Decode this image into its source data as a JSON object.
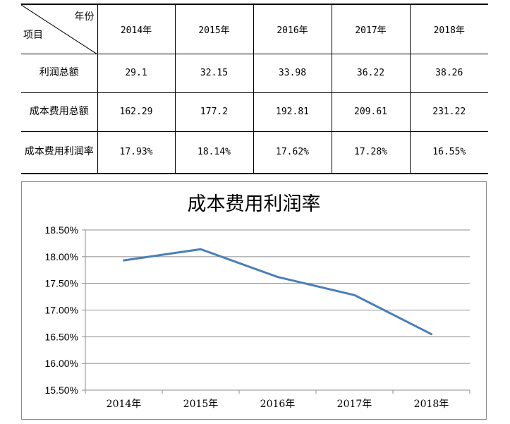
{
  "table": {
    "corner_top": "年份",
    "corner_bottom": "项目",
    "years": [
      "2014年",
      "2015年",
      "2016年",
      "2017年",
      "2018年"
    ],
    "rows": [
      {
        "label": "利润总额",
        "values": [
          "29.1",
          "32.15",
          "33.98",
          "36.22",
          "38.26"
        ]
      },
      {
        "label": "成本费用总额",
        "values": [
          "162.29",
          "177.2",
          "192.81",
          "209.61",
          "231.22"
        ]
      },
      {
        "label": "成本费用利润率",
        "values": [
          "17.93%",
          "18.14%",
          "17.62%",
          "17.28%",
          "16.55%"
        ]
      }
    ]
  },
  "chart_data": {
    "type": "line",
    "title": "成本费用利润率",
    "categories": [
      "2014年",
      "2015年",
      "2016年",
      "2017年",
      "2018年"
    ],
    "series": [
      {
        "values": [
          17.93,
          18.14,
          17.62,
          17.28,
          16.55
        ]
      }
    ],
    "yticks": [
      "18.50%",
      "18.00%",
      "17.50%",
      "17.00%",
      "16.50%",
      "16.00%",
      "15.50%"
    ],
    "ylim": [
      15.5,
      18.5
    ],
    "grid": true,
    "line_color": "#4a7ebb"
  }
}
